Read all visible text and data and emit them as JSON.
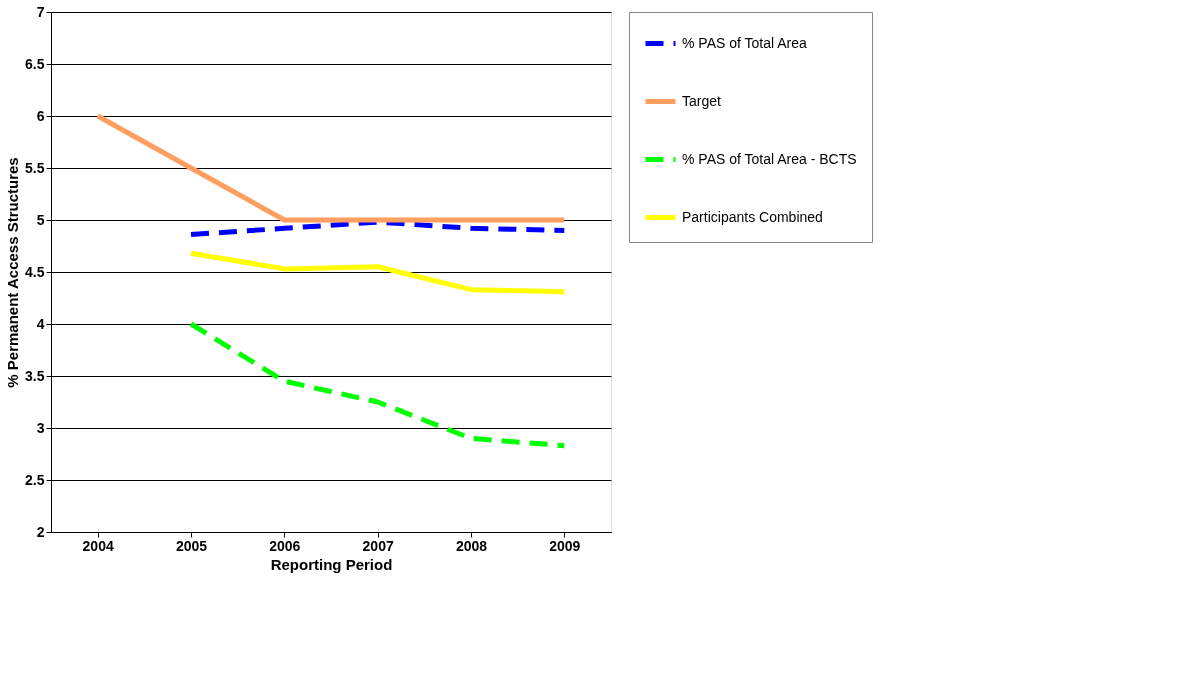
{
  "chart_data": {
    "type": "line",
    "xlabel": "Reporting Period",
    "ylabel": "% Permanent Access Structures",
    "categories": [
      "2004",
      "2005",
      "2006",
      "2007",
      "2008",
      "2009"
    ],
    "ylim": [
      2,
      7
    ],
    "yticks": [
      2,
      2.5,
      3,
      3.5,
      4,
      4.5,
      5,
      5.5,
      6,
      6.5,
      7
    ],
    "grid": "y",
    "legend": "right",
    "marker": "none",
    "series": [
      {
        "name": "% PAS of Total Area",
        "color": "#0000ff",
        "line_style": "dashed",
        "values": [
          null,
          4.86,
          4.92,
          4.98,
          4.92,
          4.9
        ]
      },
      {
        "name": "Target",
        "color": "#ff9e5e",
        "line_style": "solid",
        "values": [
          6,
          5.5,
          5,
          5,
          5,
          5
        ]
      },
      {
        "name": "% PAS of Total Area - BCTS",
        "color": "#00ff00",
        "line_style": "dashed",
        "values": [
          null,
          4.0,
          3.45,
          3.25,
          2.9,
          2.83
        ]
      },
      {
        "name": "Participants Combined",
        "color": "#ffff00",
        "line_style": "solid",
        "values": [
          null,
          4.68,
          4.53,
          4.55,
          4.33,
          4.31
        ]
      }
    ]
  }
}
